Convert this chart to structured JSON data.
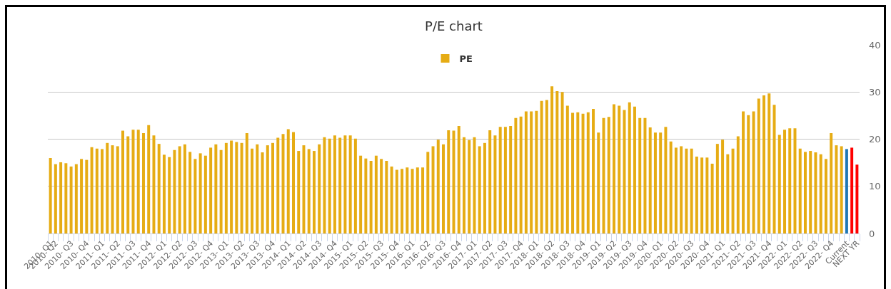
{
  "chart_data": {
    "type": "bar",
    "title": "P/E chart",
    "categories": [
      "2010- Q1",
      "2010- Q2",
      null,
      null,
      "2010- Q3",
      null,
      null,
      "2010- Q4",
      null,
      null,
      "2011- Q1",
      null,
      null,
      "2011- Q2",
      null,
      null,
      "2011- Q3",
      null,
      null,
      "2011- Q4",
      null,
      null,
      "2012- Q1",
      null,
      null,
      "2012- Q2",
      null,
      null,
      "2012- Q3",
      null,
      null,
      "2012- Q4",
      null,
      null,
      "2013- Q1",
      null,
      null,
      "2013- Q2",
      null,
      null,
      "2013- Q3",
      null,
      null,
      "2013- Q4",
      null,
      null,
      "2014- Q1",
      null,
      null,
      "2014- Q2",
      null,
      null,
      "2014- Q3",
      null,
      null,
      "2014- Q4",
      null,
      null,
      "2015- Q1",
      null,
      null,
      "2015- Q2",
      null,
      null,
      "2015- Q3",
      null,
      null,
      "2015- Q4",
      null,
      null,
      "2016- Q1",
      null,
      null,
      "2016- Q2",
      null,
      null,
      "2016- Q3",
      null,
      null,
      "2016- Q4",
      null,
      null,
      "2017- Q1",
      null,
      null,
      "2017- Q2",
      null,
      null,
      "2017- Q3",
      null,
      null,
      "2017- Q4",
      null,
      null,
      "2018- Q1",
      null,
      null,
      "2018- Q2",
      null,
      null,
      "2018- Q3",
      null,
      null,
      "2018- Q4",
      null,
      null,
      "2019- Q1",
      null,
      null,
      "2019- Q2",
      null,
      null,
      "2019- Q3",
      null,
      null,
      "2019- Q4",
      null,
      null,
      "2020- Q1",
      null,
      null,
      "2020- Q2",
      null,
      null,
      "2020- Q3",
      null,
      null,
      "2020- Q4",
      null,
      null,
      "2021- Q1",
      null,
      null,
      "2021- Q2",
      null,
      null,
      "2021- Q3",
      null,
      null,
      "2021- Q4",
      null,
      null,
      "2022- Q1",
      null,
      null,
      "2022- Q2",
      null,
      null,
      "2022- Q3",
      null,
      null,
      "2022- Q4",
      null,
      null,
      "Current",
      null,
      "NEXT YR"
    ],
    "series": [
      {
        "name": "PE",
        "values": [
          16.0,
          14.7,
          15.1,
          14.9,
          14.2,
          14.7,
          15.8,
          15.6,
          18.3,
          18.0,
          17.9,
          19.2,
          18.7,
          18.5,
          21.8,
          20.6,
          22.0,
          22.0,
          21.3,
          23.0,
          20.8,
          19.0,
          16.7,
          16.2,
          17.7,
          18.5,
          18.9,
          17.3,
          15.8,
          17.0,
          16.5,
          18.2,
          18.9,
          17.7,
          19.2,
          19.7,
          19.4,
          19.2,
          21.3,
          18.0,
          18.9,
          17.2,
          18.7,
          19.2,
          20.3,
          21.1,
          22.1,
          21.5,
          17.5,
          18.7,
          17.9,
          17.5,
          18.9,
          20.4,
          20.1,
          20.8,
          20.3,
          20.8,
          20.8,
          20.1,
          16.5,
          15.9,
          15.4,
          16.5,
          15.8,
          15.4,
          14.2,
          13.5,
          13.7,
          14.0,
          13.7,
          14.0,
          14.0,
          17.3,
          18.5,
          19.9,
          18.9,
          21.9,
          21.8,
          22.8,
          20.4,
          19.8,
          20.4,
          18.5,
          19.2,
          21.9,
          20.8,
          22.6,
          22.6,
          22.8,
          24.5,
          24.8,
          25.9,
          25.9,
          26.0,
          28.1,
          28.3,
          31.2,
          30.2,
          30.0,
          27.1,
          25.6,
          25.7,
          25.4,
          25.7,
          26.4,
          21.4,
          24.5,
          24.7,
          27.4,
          27.1,
          26.2,
          27.8,
          26.9,
          24.5,
          24.5,
          22.5,
          21.4,
          21.4,
          22.6,
          19.5,
          18.2,
          18.5,
          18.0,
          18.0,
          16.3,
          16.1,
          16.1,
          14.8,
          19.0,
          19.9,
          16.8,
          18.0,
          20.6,
          25.9,
          25.1,
          25.9,
          28.6,
          29.3,
          29.7,
          27.3,
          20.9,
          22.0,
          22.3,
          22.3,
          18.0,
          17.3,
          17.5,
          17.2,
          16.8,
          15.8,
          21.3,
          18.7,
          18.5,
          17.9,
          18.2,
          14.6
        ],
        "colors": [
          "#e6ac14",
          "#e6ac14",
          "#e6ac14",
          "#e6ac14",
          "#e6ac14",
          "#e6ac14",
          "#e6ac14",
          "#e6ac14",
          "#e6ac14",
          "#e6ac14",
          "#e6ac14",
          "#e6ac14",
          "#e6ac14",
          "#e6ac14",
          "#e6ac14",
          "#e6ac14",
          "#e6ac14",
          "#e6ac14",
          "#e6ac14",
          "#e6ac14",
          "#e6ac14",
          "#e6ac14",
          "#e6ac14",
          "#e6ac14",
          "#e6ac14",
          "#e6ac14",
          "#e6ac14",
          "#e6ac14",
          "#e6ac14",
          "#e6ac14",
          "#e6ac14",
          "#e6ac14",
          "#e6ac14",
          "#e6ac14",
          "#e6ac14",
          "#e6ac14",
          "#e6ac14",
          "#e6ac14",
          "#e6ac14",
          "#e6ac14",
          "#e6ac14",
          "#e6ac14",
          "#e6ac14",
          "#e6ac14",
          "#e6ac14",
          "#e6ac14",
          "#e6ac14",
          "#e6ac14",
          "#e6ac14",
          "#e6ac14",
          "#e6ac14",
          "#e6ac14",
          "#e6ac14",
          "#e6ac14",
          "#e6ac14",
          "#e6ac14",
          "#e6ac14",
          "#e6ac14",
          "#e6ac14",
          "#e6ac14",
          "#e6ac14",
          "#e6ac14",
          "#e6ac14",
          "#e6ac14",
          "#e6ac14",
          "#e6ac14",
          "#e6ac14",
          "#e6ac14",
          "#e6ac14",
          "#e6ac14",
          "#e6ac14",
          "#e6ac14",
          "#e6ac14",
          "#e6ac14",
          "#e6ac14",
          "#e6ac14",
          "#e6ac14",
          "#e6ac14",
          "#e6ac14",
          "#e6ac14",
          "#e6ac14",
          "#e6ac14",
          "#e6ac14",
          "#e6ac14",
          "#e6ac14",
          "#e6ac14",
          "#e6ac14",
          "#e6ac14",
          "#e6ac14",
          "#e6ac14",
          "#e6ac14",
          "#e6ac14",
          "#e6ac14",
          "#e6ac14",
          "#e6ac14",
          "#e6ac14",
          "#e6ac14",
          "#e6ac14",
          "#e6ac14",
          "#e6ac14",
          "#e6ac14",
          "#e6ac14",
          "#e6ac14",
          "#e6ac14",
          "#e6ac14",
          "#e6ac14",
          "#e6ac14",
          "#e6ac14",
          "#e6ac14",
          "#e6ac14",
          "#e6ac14",
          "#e6ac14",
          "#e6ac14",
          "#e6ac14",
          "#e6ac14",
          "#e6ac14",
          "#e6ac14",
          "#e6ac14",
          "#e6ac14",
          "#e6ac14",
          "#e6ac14",
          "#e6ac14",
          "#e6ac14",
          "#e6ac14",
          "#e6ac14",
          "#e6ac14",
          "#e6ac14",
          "#e6ac14",
          "#e6ac14",
          "#e6ac14",
          "#e6ac14",
          "#e6ac14",
          "#e6ac14",
          "#e6ac14",
          "#e6ac14",
          "#e6ac14",
          "#e6ac14",
          "#e6ac14",
          "#e6ac14",
          "#e6ac14",
          "#e6ac14",
          "#e6ac14",
          "#e6ac14",
          "#e6ac14",
          "#e6ac14",
          "#e6ac14",
          "#e6ac14",
          "#e6ac14",
          "#e6ac14",
          "#e6ac14",
          "#e6ac14",
          "#e6ac14",
          "#e6ac14",
          "#e6ac14",
          "#1f77b4",
          "#ff0000",
          "#ff0000"
        ]
      }
    ],
    "ylim": [
      0,
      40
    ],
    "yticks": [
      0,
      10,
      20,
      30,
      40
    ],
    "grid": "y",
    "legend": "top"
  }
}
